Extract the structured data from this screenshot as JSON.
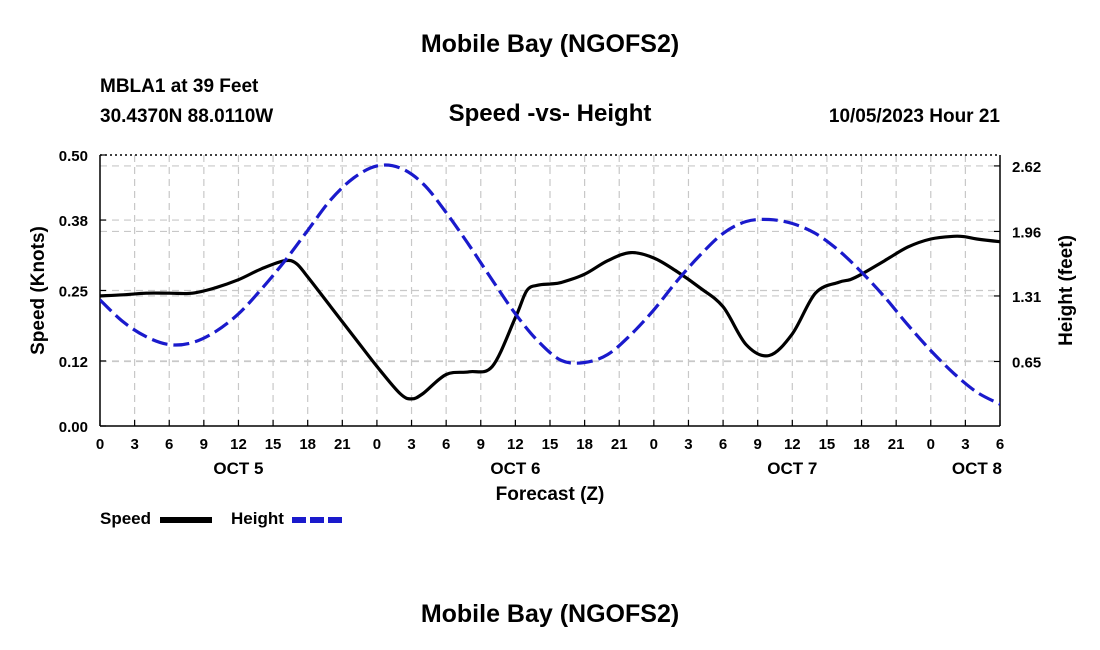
{
  "header": {
    "title": "Mobile Bay (NGOFS2)",
    "station": "MBLA1 at 39 Feet",
    "coords": "30.4370N  88.0110W",
    "subtitle": "Speed -vs- Height",
    "datetime": "10/05/2023 Hour 21"
  },
  "footer": {
    "title": "Mobile Bay (NGOFS2)"
  },
  "legend": {
    "speed_label": "Speed",
    "height_label": "Height"
  },
  "colors": {
    "speed": "#000000",
    "height": "#1a1acc",
    "grid": "#c8c8c8"
  },
  "chart_data": {
    "type": "line",
    "title": "Speed -vs- Height",
    "xlabel": "Forecast (Z)",
    "ylabel_left": "Speed (Knots)",
    "ylabel_right": "Height (feet)",
    "x_unit": "hours since OCT 5 00Z",
    "xlim": [
      0,
      78
    ],
    "ylim_left": [
      0,
      0.5
    ],
    "ylim_right": [
      0.0,
      2.73
    ],
    "x_ticks": [
      0,
      3,
      6,
      9,
      12,
      15,
      18,
      21,
      24,
      27,
      30,
      33,
      36,
      39,
      42,
      45,
      48,
      51,
      54,
      57,
      60,
      63,
      66,
      69,
      72,
      75,
      78
    ],
    "x_tick_labels": [
      "0",
      "3",
      "6",
      "9",
      "12",
      "15",
      "18",
      "21",
      "0",
      "3",
      "6",
      "9",
      "12",
      "15",
      "18",
      "21",
      "0",
      "3",
      "6",
      "9",
      "12",
      "15",
      "18",
      "21",
      "0",
      "3",
      "6"
    ],
    "day_labels": [
      {
        "x": 12,
        "label": "OCT 5"
      },
      {
        "x": 36,
        "label": "OCT 6"
      },
      {
        "x": 60,
        "label": "OCT 7"
      },
      {
        "x": 76,
        "label": "OCT 8"
      }
    ],
    "y_ticks_left": [
      0.0,
      0.12,
      0.25,
      0.38,
      0.5
    ],
    "y_tick_labels_left": [
      "0.00",
      "0.12",
      "0.25",
      "0.38",
      "0.50"
    ],
    "y_ticks_right": [
      0.65,
      1.31,
      1.96,
      2.62
    ],
    "y_tick_labels_right": [
      "0.65",
      "1.31",
      "1.96",
      "2.62"
    ],
    "grid": true,
    "series": [
      {
        "name": "Speed",
        "axis": "left",
        "style": "solid",
        "x": [
          0,
          2,
          4,
          6,
          8,
          10,
          12,
          14,
          16,
          17,
          18,
          20,
          22,
          24,
          26,
          27,
          28,
          30,
          32,
          34,
          36,
          37,
          38,
          39,
          40,
          42,
          44,
          46,
          48,
          50,
          52,
          54,
          56,
          58,
          60,
          62,
          64,
          65,
          66,
          68,
          70,
          72,
          74,
          75,
          76,
          78
        ],
        "values": [
          0.24,
          0.242,
          0.245,
          0.245,
          0.245,
          0.255,
          0.27,
          0.29,
          0.305,
          0.3,
          0.275,
          0.22,
          0.165,
          0.11,
          0.06,
          0.05,
          0.06,
          0.095,
          0.1,
          0.11,
          0.2,
          0.25,
          0.26,
          0.262,
          0.265,
          0.28,
          0.305,
          0.32,
          0.31,
          0.285,
          0.255,
          0.22,
          0.15,
          0.13,
          0.17,
          0.245,
          0.265,
          0.27,
          0.28,
          0.305,
          0.33,
          0.345,
          0.35,
          0.349,
          0.345,
          0.34
        ]
      },
      {
        "name": "Height",
        "axis": "right",
        "style": "dashed",
        "x": [
          0,
          2,
          4,
          6,
          8,
          10,
          12,
          14,
          16,
          18,
          20,
          22,
          24,
          26,
          28,
          30,
          32,
          34,
          36,
          38,
          40,
          42,
          44,
          46,
          48,
          50,
          52,
          54,
          56,
          58,
          60,
          62,
          64,
          66,
          68,
          70,
          72,
          74,
          76,
          78
        ],
        "values": [
          1.27,
          1.05,
          0.9,
          0.82,
          0.84,
          0.95,
          1.13,
          1.38,
          1.66,
          1.97,
          2.28,
          2.5,
          2.62,
          2.6,
          2.44,
          2.15,
          1.82,
          1.47,
          1.13,
          0.85,
          0.66,
          0.64,
          0.72,
          0.92,
          1.17,
          1.46,
          1.72,
          1.94,
          2.06,
          2.08,
          2.04,
          1.94,
          1.77,
          1.55,
          1.3,
          1.02,
          0.76,
          0.53,
          0.34,
          0.22
        ]
      }
    ],
    "legend_position": "bottom-left"
  }
}
